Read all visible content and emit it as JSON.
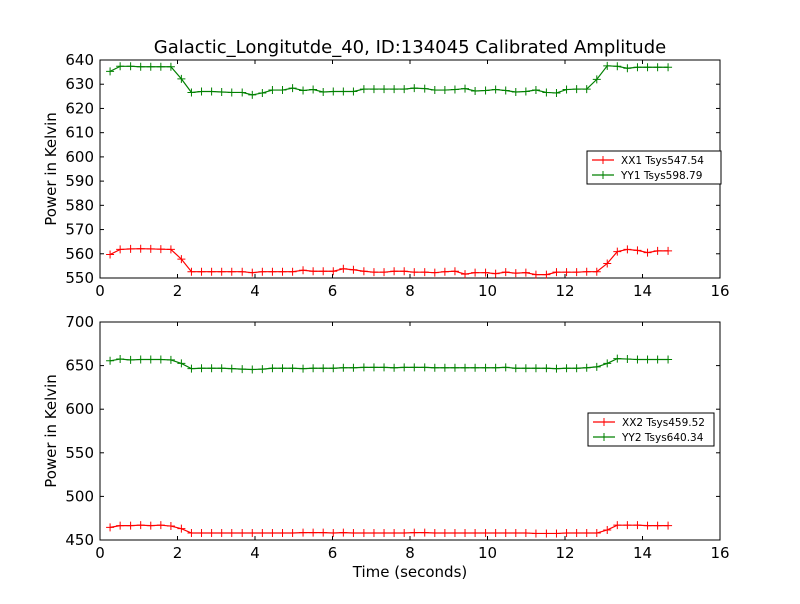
{
  "figure": {
    "title": "Galactic_Longitutde_40, ID:134045 Calibrated Amplitude"
  },
  "chart_data": [
    {
      "type": "line",
      "title": "Galactic_Longitutde_40, ID:134045 Calibrated Amplitude",
      "xlabel": "",
      "ylabel": "Power in Kelvin",
      "xlim": [
        0,
        16
      ],
      "ylim": [
        550,
        640
      ],
      "xticks": [
        "0",
        "2",
        "4",
        "6",
        "8",
        "10",
        "12",
        "14",
        "16"
      ],
      "yticks": [
        "550",
        "560",
        "570",
        "580",
        "590",
        "600",
        "610",
        "620",
        "630",
        "640"
      ],
      "grid": false,
      "legend_position": "right",
      "x": [
        0.26,
        0.52,
        0.79,
        1.05,
        1.31,
        1.57,
        1.83,
        2.1,
        2.36,
        2.62,
        2.88,
        3.14,
        3.4,
        3.67,
        3.93,
        4.19,
        4.45,
        4.71,
        4.97,
        5.24,
        5.5,
        5.76,
        6.02,
        6.28,
        6.54,
        6.81,
        7.07,
        7.33,
        7.59,
        7.85,
        8.11,
        8.38,
        8.64,
        8.9,
        9.16,
        9.42,
        9.68,
        9.95,
        10.21,
        10.47,
        10.73,
        10.99,
        11.25,
        11.52,
        11.78,
        12.04,
        12.3,
        12.56,
        12.82,
        13.09,
        13.35,
        13.61,
        13.87,
        14.13,
        14.39,
        14.66
      ],
      "series": [
        {
          "name": "XX1 Tsys547.54",
          "color": "#ff0000",
          "values": [
            559.7,
            561.8,
            562.0,
            562.1,
            562.0,
            561.9,
            561.8,
            557.8,
            552.6,
            552.6,
            552.6,
            552.6,
            552.6,
            552.6,
            552.2,
            552.6,
            552.6,
            552.6,
            552.6,
            553.2,
            552.8,
            552.8,
            552.8,
            553.8,
            553.4,
            552.8,
            552.4,
            552.4,
            552.8,
            552.8,
            552.4,
            552.4,
            552.2,
            552.6,
            552.8,
            551.6,
            552.2,
            552.2,
            551.8,
            552.4,
            552.0,
            552.2,
            551.4,
            551.4,
            552.4,
            552.4,
            552.4,
            552.6,
            552.6,
            556.0,
            560.9,
            561.8,
            561.4,
            560.5,
            561.2,
            561.2
          ]
        },
        {
          "name": "YY1 Tsys598.79",
          "color": "#008000",
          "values": [
            635.3,
            637.4,
            637.4,
            637.2,
            637.2,
            637.2,
            637.2,
            632.2,
            626.6,
            627.0,
            627.0,
            626.8,
            626.6,
            626.6,
            625.6,
            626.4,
            627.6,
            627.6,
            628.4,
            627.4,
            627.8,
            626.8,
            627.0,
            627.0,
            627.0,
            628.0,
            628.0,
            628.0,
            628.0,
            628.0,
            628.4,
            628.2,
            627.6,
            627.6,
            627.8,
            628.2,
            627.2,
            627.4,
            627.8,
            627.4,
            626.8,
            627.0,
            627.6,
            626.6,
            626.4,
            627.8,
            628.0,
            628.0,
            632.0,
            637.6,
            637.4,
            636.6,
            637.0,
            637.0,
            637.0,
            637.0
          ]
        }
      ]
    },
    {
      "type": "line",
      "title": "",
      "xlabel": "Time (seconds)",
      "ylabel": "Power in Kelvin",
      "xlim": [
        0,
        16
      ],
      "ylim": [
        450,
        700
      ],
      "xticks": [
        "0",
        "2",
        "4",
        "6",
        "8",
        "10",
        "12",
        "14",
        "16"
      ],
      "yticks": [
        "450",
        "500",
        "550",
        "600",
        "650",
        "700"
      ],
      "grid": false,
      "legend_position": "right",
      "x": [
        0.26,
        0.52,
        0.79,
        1.05,
        1.31,
        1.57,
        1.83,
        2.1,
        2.36,
        2.62,
        2.88,
        3.14,
        3.4,
        3.67,
        3.93,
        4.19,
        4.45,
        4.71,
        4.97,
        5.24,
        5.5,
        5.76,
        6.02,
        6.28,
        6.54,
        6.81,
        7.07,
        7.33,
        7.59,
        7.85,
        8.11,
        8.38,
        8.64,
        8.9,
        9.16,
        9.42,
        9.68,
        9.95,
        10.21,
        10.47,
        10.73,
        10.99,
        11.25,
        11.52,
        11.78,
        12.04,
        12.3,
        12.56,
        12.82,
        13.09,
        13.35,
        13.61,
        13.87,
        14.13,
        14.39,
        14.66
      ],
      "series": [
        {
          "name": "XX2 Tsys459.52",
          "color": "#ff0000",
          "values": [
            464.5,
            466.5,
            466.5,
            467.0,
            466.5,
            467.0,
            466.0,
            463.0,
            458.0,
            458.0,
            458.0,
            458.0,
            458.0,
            458.0,
            458.0,
            458.0,
            458.0,
            458.0,
            458.0,
            458.5,
            458.5,
            458.5,
            458.0,
            458.5,
            458.0,
            458.0,
            458.0,
            458.0,
            458.0,
            458.0,
            458.5,
            458.5,
            458.0,
            458.0,
            458.0,
            458.0,
            458.0,
            458.0,
            458.0,
            458.0,
            458.0,
            458.0,
            457.5,
            457.5,
            457.5,
            458.0,
            458.0,
            458.0,
            458.0,
            461.5,
            467.0,
            467.0,
            467.0,
            466.5,
            466.5,
            466.5
          ]
        },
        {
          "name": "YY2 Tsys640.34",
          "color": "#008000",
          "values": [
            655.5,
            657.5,
            656.5,
            657.0,
            657.0,
            657.0,
            656.5,
            652.5,
            646.5,
            647.0,
            647.0,
            647.0,
            646.5,
            646.0,
            645.5,
            646.0,
            647.0,
            647.0,
            647.0,
            646.5,
            647.0,
            647.0,
            647.0,
            647.5,
            647.5,
            648.0,
            648.0,
            648.0,
            647.5,
            648.0,
            648.0,
            648.0,
            647.5,
            647.5,
            647.5,
            647.5,
            647.5,
            647.5,
            647.5,
            648.0,
            647.0,
            647.0,
            647.0,
            647.0,
            646.5,
            647.0,
            647.0,
            647.5,
            648.5,
            652.5,
            658.0,
            657.5,
            657.0,
            657.0,
            657.0,
            657.0
          ]
        }
      ]
    }
  ]
}
